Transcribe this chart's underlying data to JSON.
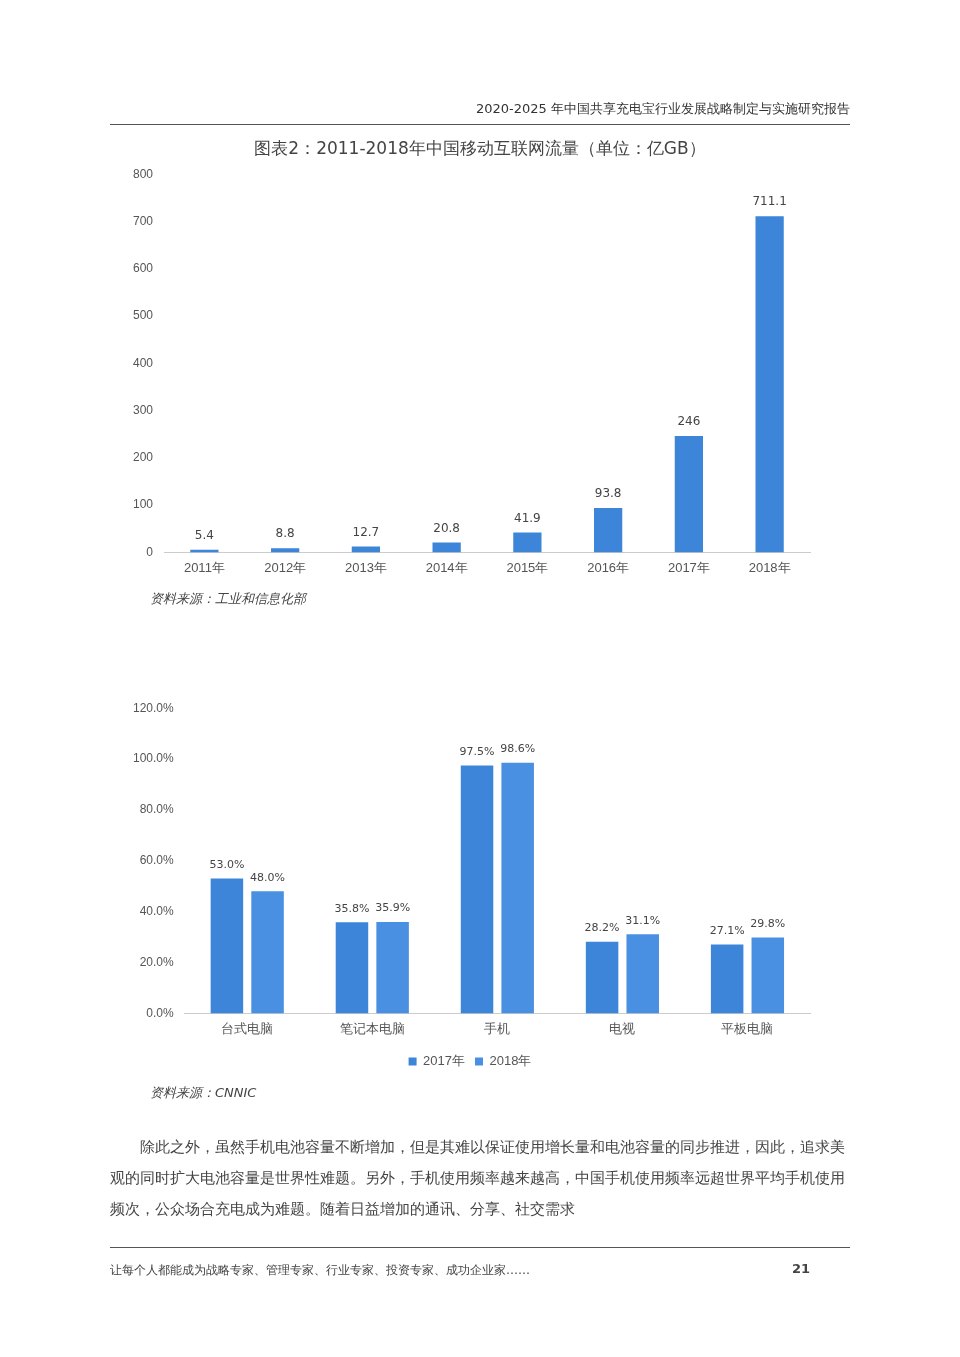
{
  "chart_data": [
    {
      "type": "bar",
      "title": "图表2：2011-2018年中国移动互联网流量（单位：亿GB）",
      "categories": [
        "2011年",
        "2012年",
        "2013年",
        "2014年",
        "2015年",
        "2016年",
        "2017年",
        "2018年"
      ],
      "values": [
        5.4,
        8.8,
        12.7,
        20.8,
        41.9,
        93.8,
        246,
        711.1
      ],
      "color": "#3d85d8",
      "ylim": [
        0,
        800
      ],
      "yticks": [
        0,
        100,
        200,
        300,
        400,
        500,
        600,
        700,
        800
      ],
      "grid": false,
      "data_labels": true,
      "legend": false,
      "annotations": [
        "2020-2025 年中国共享充电宝行业发展战略制定与实施研究报告",
        "资料来源：工业和信息化部"
      ]
    },
    {
      "type": "bar",
      "categories": [
        "台式电脑",
        "笔记本电脑",
        "手机",
        "电视",
        "平板电脑"
      ],
      "series": [
        {
          "name": "2017年",
          "color": "#3d85d8",
          "values": [
            53.0,
            35.8,
            97.5,
            28.2,
            27.1
          ]
        },
        {
          "name": "2018年",
          "color": "#4a90e2",
          "values": [
            48.0,
            35.9,
            98.6,
            31.1,
            29.8
          ]
        }
      ],
      "value_labels": [
        [
          "53.0%",
          "35.8%",
          "97.5%",
          "28.2%",
          "27.1%"
        ],
        [
          "48.0%",
          "35.9%",
          "98.6%",
          "31.1%",
          "29.8%"
        ]
      ],
      "ylim": [
        0,
        120
      ],
      "yticks": [
        {
          "value": 0,
          "label": "0.0%"
        },
        {
          "value": 20,
          "label": "20.0%"
        },
        {
          "value": 40,
          "label": "40.0%"
        },
        {
          "value": 60,
          "label": "60.0%"
        },
        {
          "value": 80,
          "label": "80.0%"
        },
        {
          "value": 100,
          "label": "100.0%"
        },
        {
          "value": 120,
          "label": "120.0%"
        }
      ],
      "grid": false,
      "legend": "bottom",
      "annotations": [
        "资料来源：CNNIC",
        "除此之外，虽然手机电池容量不断增加，但是其难以保证使用增长量和电池容量的同步推进，因此，追求美观的同时扩大电池容量是世界性难题。另外，手机使用频率越来越高，中国手机使用频率远超世界平均手机使用频次，公众场合充电成为难题。随着日益增加的通讯、分享、社交需求",
        "让每个人都能成为战略专家、管理专家、行业专家、投资专家、成功企业家……",
        "21"
      ]
    }
  ]
}
